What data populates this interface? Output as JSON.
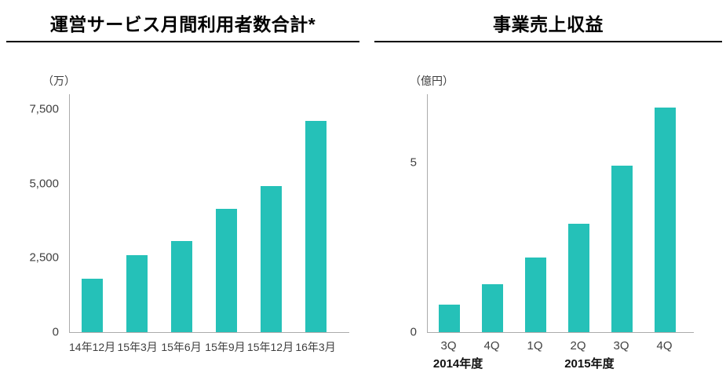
{
  "page": {
    "background": "#ffffff",
    "accent_teal": "#25c1b8",
    "axis_color": "#ababab"
  },
  "chart_data": [
    {
      "type": "bar",
      "title": "運営サービス月間利用者数合計*",
      "unit_label": "（万）",
      "categories": [
        "14年12月",
        "15年3月",
        "15年6月",
        "15年9月",
        "15年12月",
        "16年3月"
      ],
      "values": [
        1800,
        2600,
        3050,
        4150,
        4900,
        7100
      ],
      "ylim": [
        0,
        8000
      ],
      "yticks": [
        {
          "value": 0,
          "label": "0"
        },
        {
          "value": 2500,
          "label": "2,500"
        },
        {
          "value": 5000,
          "label": "5,000"
        },
        {
          "value": 7500,
          "label": "7,500"
        }
      ],
      "bar_color": "#25c1b8",
      "grid": false,
      "legend": "none"
    },
    {
      "type": "bar",
      "title": "事業売上収益",
      "unit_label": "（億円）",
      "categories": [
        "3Q",
        "4Q",
        "1Q",
        "2Q",
        "3Q",
        "4Q"
      ],
      "values": [
        0.8,
        1.4,
        2.2,
        3.2,
        4.9,
        6.6
      ],
      "ylim": [
        0,
        7
      ],
      "yticks": [
        {
          "value": 0,
          "label": "0"
        },
        {
          "value": 5,
          "label": "5"
        }
      ],
      "group_labels": [
        "2014年度",
        "2015年度"
      ],
      "bar_color": "#25c1b8",
      "grid": false,
      "legend": "none"
    }
  ]
}
